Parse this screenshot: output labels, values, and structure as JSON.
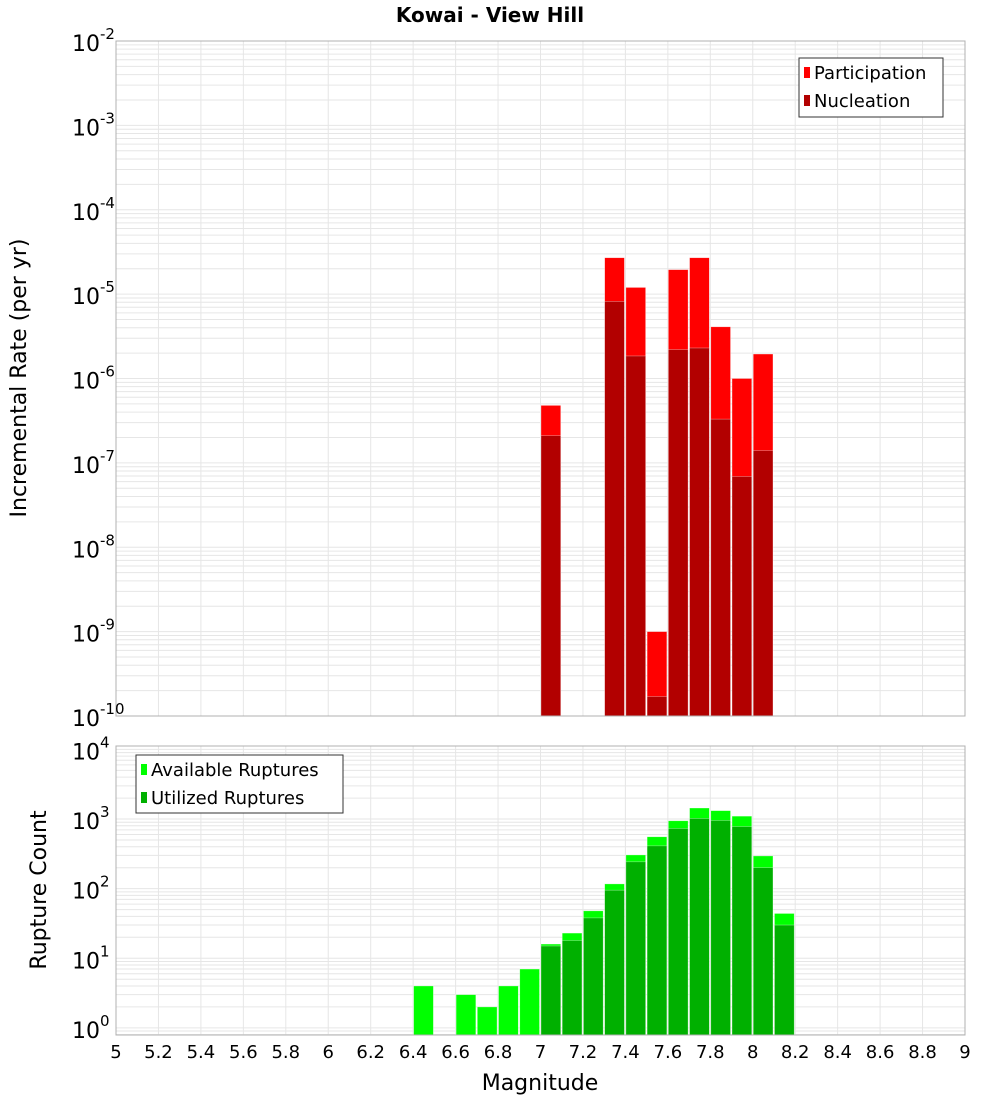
{
  "chart_data": [
    {
      "type": "bar",
      "title": "Kowai - View Hill",
      "xlabel": "Magnitude",
      "ylabel": "Incremental Rate (per yr)",
      "yscale": "log",
      "ylim": [
        1e-10,
        0.01
      ],
      "xlim": [
        5,
        9
      ],
      "grid": true,
      "legend_placement": "top-right",
      "bin_width": 0.1,
      "x": [
        7.0,
        7.3,
        7.4,
        7.5,
        7.6,
        7.7,
        7.8,
        7.9,
        8.0
      ],
      "series": [
        {
          "name": "Participation",
          "color": "#ff0000",
          "values": [
            4.8e-07,
            2.7e-05,
            1.2e-05,
            1e-09,
            1.95e-05,
            2.7e-05,
            4.1e-06,
            1e-06,
            1.95e-06
          ]
        },
        {
          "name": "Nucleation",
          "color": "#b20000",
          "values": [
            2.1e-07,
            8.2e-06,
            1.85e-06,
            1.7e-10,
            2.2e-06,
            2.3e-06,
            3.3e-07,
            6.9e-08,
            1.4e-07
          ]
        }
      ],
      "y_ticks": [
        {
          "base": "10",
          "exp": "-10"
        },
        {
          "base": "10",
          "exp": "-9"
        },
        {
          "base": "10",
          "exp": "-8"
        },
        {
          "base": "10",
          "exp": "-7"
        },
        {
          "base": "10",
          "exp": "-6"
        },
        {
          "base": "10",
          "exp": "-5"
        },
        {
          "base": "10",
          "exp": "-4"
        },
        {
          "base": "10",
          "exp": "-3"
        },
        {
          "base": "10",
          "exp": "-2"
        }
      ]
    },
    {
      "type": "bar",
      "xlabel": "Magnitude",
      "ylabel": "Rupture Count",
      "yscale": "log",
      "ylim": [
        0.79,
        11200
      ],
      "xlim": [
        5,
        9
      ],
      "grid": true,
      "legend_placement": "top-left",
      "bin_width": 0.1,
      "x": [
        6.4,
        6.6,
        6.7,
        6.8,
        6.9,
        7.0,
        7.1,
        7.2,
        7.3,
        7.4,
        7.5,
        7.6,
        7.7,
        7.8,
        7.9,
        8.0,
        8.1
      ],
      "series": [
        {
          "name": "Available Ruptures",
          "color": "#00ff00",
          "values": [
            4,
            3,
            2,
            4,
            7,
            16,
            23,
            48,
            117,
            305,
            556,
            944,
            1440,
            1320,
            1100,
            295,
            44
          ]
        },
        {
          "name": "Utilized Ruptures",
          "color": "#00b000",
          "values": [
            0,
            0,
            0,
            0,
            0,
            15,
            18,
            38,
            95,
            243,
            412,
            733,
            1020,
            955,
            780,
            200,
            30
          ]
        }
      ],
      "y_ticks": [
        {
          "base": "10",
          "exp": "0"
        },
        {
          "base": "10",
          "exp": "1"
        },
        {
          "base": "10",
          "exp": "2"
        },
        {
          "base": "10",
          "exp": "3"
        },
        {
          "base": "10",
          "exp": "4"
        }
      ],
      "x_ticks": [
        "5",
        "5.2",
        "5.4",
        "5.6",
        "5.8",
        "6",
        "6.2",
        "6.4",
        "6.6",
        "6.8",
        "7",
        "7.2",
        "7.4",
        "7.6",
        "7.8",
        "8",
        "8.2",
        "8.4",
        "8.6",
        "8.8",
        "9"
      ]
    }
  ]
}
